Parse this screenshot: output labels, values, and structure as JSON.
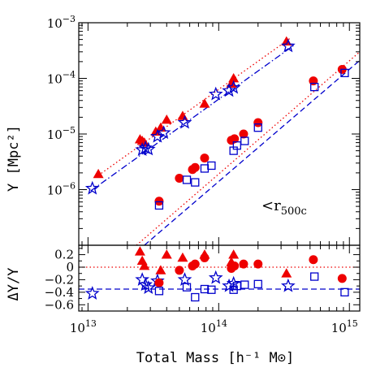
{
  "chart_data": [
    {
      "type": "scatter",
      "panel": "top",
      "xscale": "log",
      "yscale": "log",
      "xlim": [
        8500000000000.0,
        1200000000000000.0
      ],
      "ylim": [
        1e-07,
        0.001
      ],
      "xlabel": "Total Mass [h⁻¹ M⊙]",
      "ylabel": "Y [Mpc²]",
      "xticks": [
        {
          "value": 10000000000000.0,
          "mant": "10",
          "exp": "13"
        },
        {
          "value": 100000000000000.0,
          "mant": "10",
          "exp": "14"
        },
        {
          "value": 1000000000000000.0,
          "mant": "10",
          "exp": "15"
        }
      ],
      "yticks": [
        {
          "value": 1e-06,
          "mant": "10",
          "exp": "−6"
        },
        {
          "value": 1e-05,
          "mant": "10",
          "exp": "−5"
        },
        {
          "value": 0.0001,
          "mant": "10",
          "exp": "−4"
        },
        {
          "value": 0.001,
          "mant": "10",
          "exp": "−3"
        }
      ],
      "annotation": {
        "text": "<r",
        "sub": "500c"
      },
      "series": [
        {
          "marker": "filled-triangle",
          "color": "#ee0000",
          "points": [
            [
              12000000000000.0,
              1.9e-06
            ],
            [
              25000000000000.0,
              8e-06
            ],
            [
              26000000000000.0,
              7.5e-06
            ],
            [
              27000000000000.0,
              7e-06
            ],
            [
              33000000000000.0,
              1.1e-05
            ],
            [
              36000000000000.0,
              1.3e-05
            ],
            [
              40000000000000.0,
              1.8e-05
            ],
            [
              53000000000000.0,
              2.1e-05
            ],
            [
              78000000000000.0,
              3.5e-05
            ],
            [
              125000000000000.0,
              8e-05
            ],
            [
              130000000000000.0,
              0.0001
            ],
            [
              330000000000000.0,
              0.00046
            ]
          ]
        },
        {
          "marker": "open-star",
          "color": "#0000cc",
          "points": [
            [
              10800000000000.0,
              1.05e-06
            ],
            [
              26000000000000.0,
              5.2e-06
            ],
            [
              27500000000000.0,
              5.6e-06
            ],
            [
              29000000000000.0,
              5.3e-06
            ],
            [
              34000000000000.0,
              9e-06
            ],
            [
              38000000000000.0,
              1.05e-05
            ],
            [
              55000000000000.0,
              1.6e-05
            ],
            [
              95000000000000.0,
              5.2e-05
            ],
            [
              120000000000000.0,
              6e-05
            ],
            [
              130000000000000.0,
              6.8e-05
            ],
            [
              340000000000000.0,
              0.00038
            ]
          ]
        },
        {
          "marker": "filled-circle",
          "color": "#ee0000",
          "points": [
            [
              35000000000000.0,
              6.2e-07
            ],
            [
              50000000000000.0,
              1.6e-06
            ],
            [
              63000000000000.0,
              2.3e-06
            ],
            [
              66000000000000.0,
              2.5e-06
            ],
            [
              78000000000000.0,
              3.7e-06
            ],
            [
              125000000000000.0,
              7.7e-06
            ],
            [
              132000000000000.0,
              8.2e-06
            ],
            [
              155000000000000.0,
              1e-05
            ],
            [
              200000000000000.0,
              1.6e-05
            ],
            [
              530000000000000.0,
              9e-05
            ],
            [
              880000000000000.0,
              0.000145
            ]
          ]
        },
        {
          "marker": "open-square",
          "color": "#0000cc",
          "points": [
            [
              35000000000000.0,
              5.2e-07
            ],
            [
              57000000000000.0,
              1.5e-06
            ],
            [
              66000000000000.0,
              1.35e-06
            ],
            [
              78000000000000.0,
              2.4e-06
            ],
            [
              88000000000000.0,
              2.7e-06
            ],
            [
              130000000000000.0,
              5e-06
            ],
            [
              138000000000000.0,
              6.2e-06
            ],
            [
              158000000000000.0,
              7.5e-06
            ],
            [
              200000000000000.0,
              1.3e-05
            ],
            [
              540000000000000.0,
              7e-05
            ],
            [
              920000000000000.0,
              0.000125
            ]
          ]
        }
      ],
      "lines": [
        {
          "style": "dotted",
          "color": "#ee0000",
          "x": [
            12000000000000.0,
            350000000000000.0
          ],
          "y": [
            1.8e-06,
            0.00052
          ]
        },
        {
          "style": "dashdot",
          "color": "#0000cc",
          "x": [
            10500000000000.0,
            380000000000000.0
          ],
          "y": [
            9.5e-07,
            0.0004
          ]
        },
        {
          "style": "dotted",
          "color": "#ee0000",
          "x": [
            23500000000000.0,
            1200000000000000.0
          ],
          "y": [
            1e-07,
            0.0003
          ]
        },
        {
          "style": "dashed",
          "color": "#0000cc",
          "x": [
            27000000000000.0,
            1200000000000000.0
          ],
          "y": [
            1e-07,
            0.00021
          ]
        }
      ]
    },
    {
      "type": "scatter",
      "panel": "bottom",
      "xscale": "log",
      "yscale": "linear",
      "xlim": [
        8500000000000.0,
        1200000000000000.0
      ],
      "ylim": [
        -0.7,
        0.35
      ],
      "xlabel": "Total Mass [h⁻¹ M⊙]",
      "ylabel": "ΔY/Y",
      "yticks": [
        {
          "value": 0.2,
          "label": "0.2"
        },
        {
          "value": 0,
          "label": "0"
        },
        {
          "value": -0.2,
          "label": "−0.2"
        },
        {
          "value": -0.4,
          "label": "−0.4"
        },
        {
          "value": -0.6,
          "label": "−0.6"
        }
      ],
      "series": [
        {
          "marker": "filled-triangle",
          "color": "#ee0000",
          "points": [
            [
              25000000000000.0,
              0.25
            ],
            [
              26000000000000.0,
              0.1
            ],
            [
              27000000000000.0,
              0.02
            ],
            [
              36000000000000.0,
              -0.05
            ],
            [
              40000000000000.0,
              0.2
            ],
            [
              53000000000000.0,
              0.15
            ],
            [
              78000000000000.0,
              0.2
            ],
            [
              125000000000000.0,
              0.08
            ],
            [
              130000000000000.0,
              0.2
            ],
            [
              330000000000000.0,
              -0.1
            ]
          ]
        },
        {
          "marker": "open-star",
          "color": "#0000cc",
          "points": [
            [
              10800000000000.0,
              -0.42
            ],
            [
              26000000000000.0,
              -0.2
            ],
            [
              27500000000000.0,
              -0.28
            ],
            [
              29000000000000.0,
              -0.33
            ],
            [
              34000000000000.0,
              -0.22
            ],
            [
              55000000000000.0,
              -0.2
            ],
            [
              95000000000000.0,
              -0.17
            ],
            [
              120000000000000.0,
              -0.3
            ],
            [
              130000000000000.0,
              -0.26
            ],
            [
              340000000000000.0,
              -0.3
            ]
          ]
        },
        {
          "marker": "filled-circle",
          "color": "#ee0000",
          "points": [
            [
              35000000000000.0,
              -0.25
            ],
            [
              50000000000000.0,
              -0.05
            ],
            [
              63000000000000.0,
              0.02
            ],
            [
              66000000000000.0,
              0.05
            ],
            [
              78000000000000.0,
              0.15
            ],
            [
              125000000000000.0,
              -0.02
            ],
            [
              132000000000000.0,
              0.02
            ],
            [
              155000000000000.0,
              0.05
            ],
            [
              200000000000000.0,
              0.05
            ],
            [
              530000000000000.0,
              0.12
            ],
            [
              880000000000000.0,
              -0.18
            ]
          ]
        },
        {
          "marker": "open-square",
          "color": "#0000cc",
          "points": [
            [
              35000000000000.0,
              -0.38
            ],
            [
              57000000000000.0,
              -0.32
            ],
            [
              66000000000000.0,
              -0.48
            ],
            [
              78000000000000.0,
              -0.35
            ],
            [
              88000000000000.0,
              -0.36
            ],
            [
              130000000000000.0,
              -0.36
            ],
            [
              138000000000000.0,
              -0.3
            ],
            [
              158000000000000.0,
              -0.28
            ],
            [
              200000000000000.0,
              -0.27
            ],
            [
              540000000000000.0,
              -0.15
            ],
            [
              920000000000000.0,
              -0.4
            ]
          ]
        }
      ],
      "lines": [
        {
          "style": "dotted",
          "color": "#ee0000",
          "x": [
            8500000000000.0,
            1200000000000000.0
          ],
          "y": [
            0,
            0
          ]
        },
        {
          "style": "dashed",
          "color": "#0000cc",
          "x": [
            8500000000000.0,
            1200000000000000.0
          ],
          "y": [
            -0.35,
            -0.35
          ]
        }
      ]
    }
  ]
}
